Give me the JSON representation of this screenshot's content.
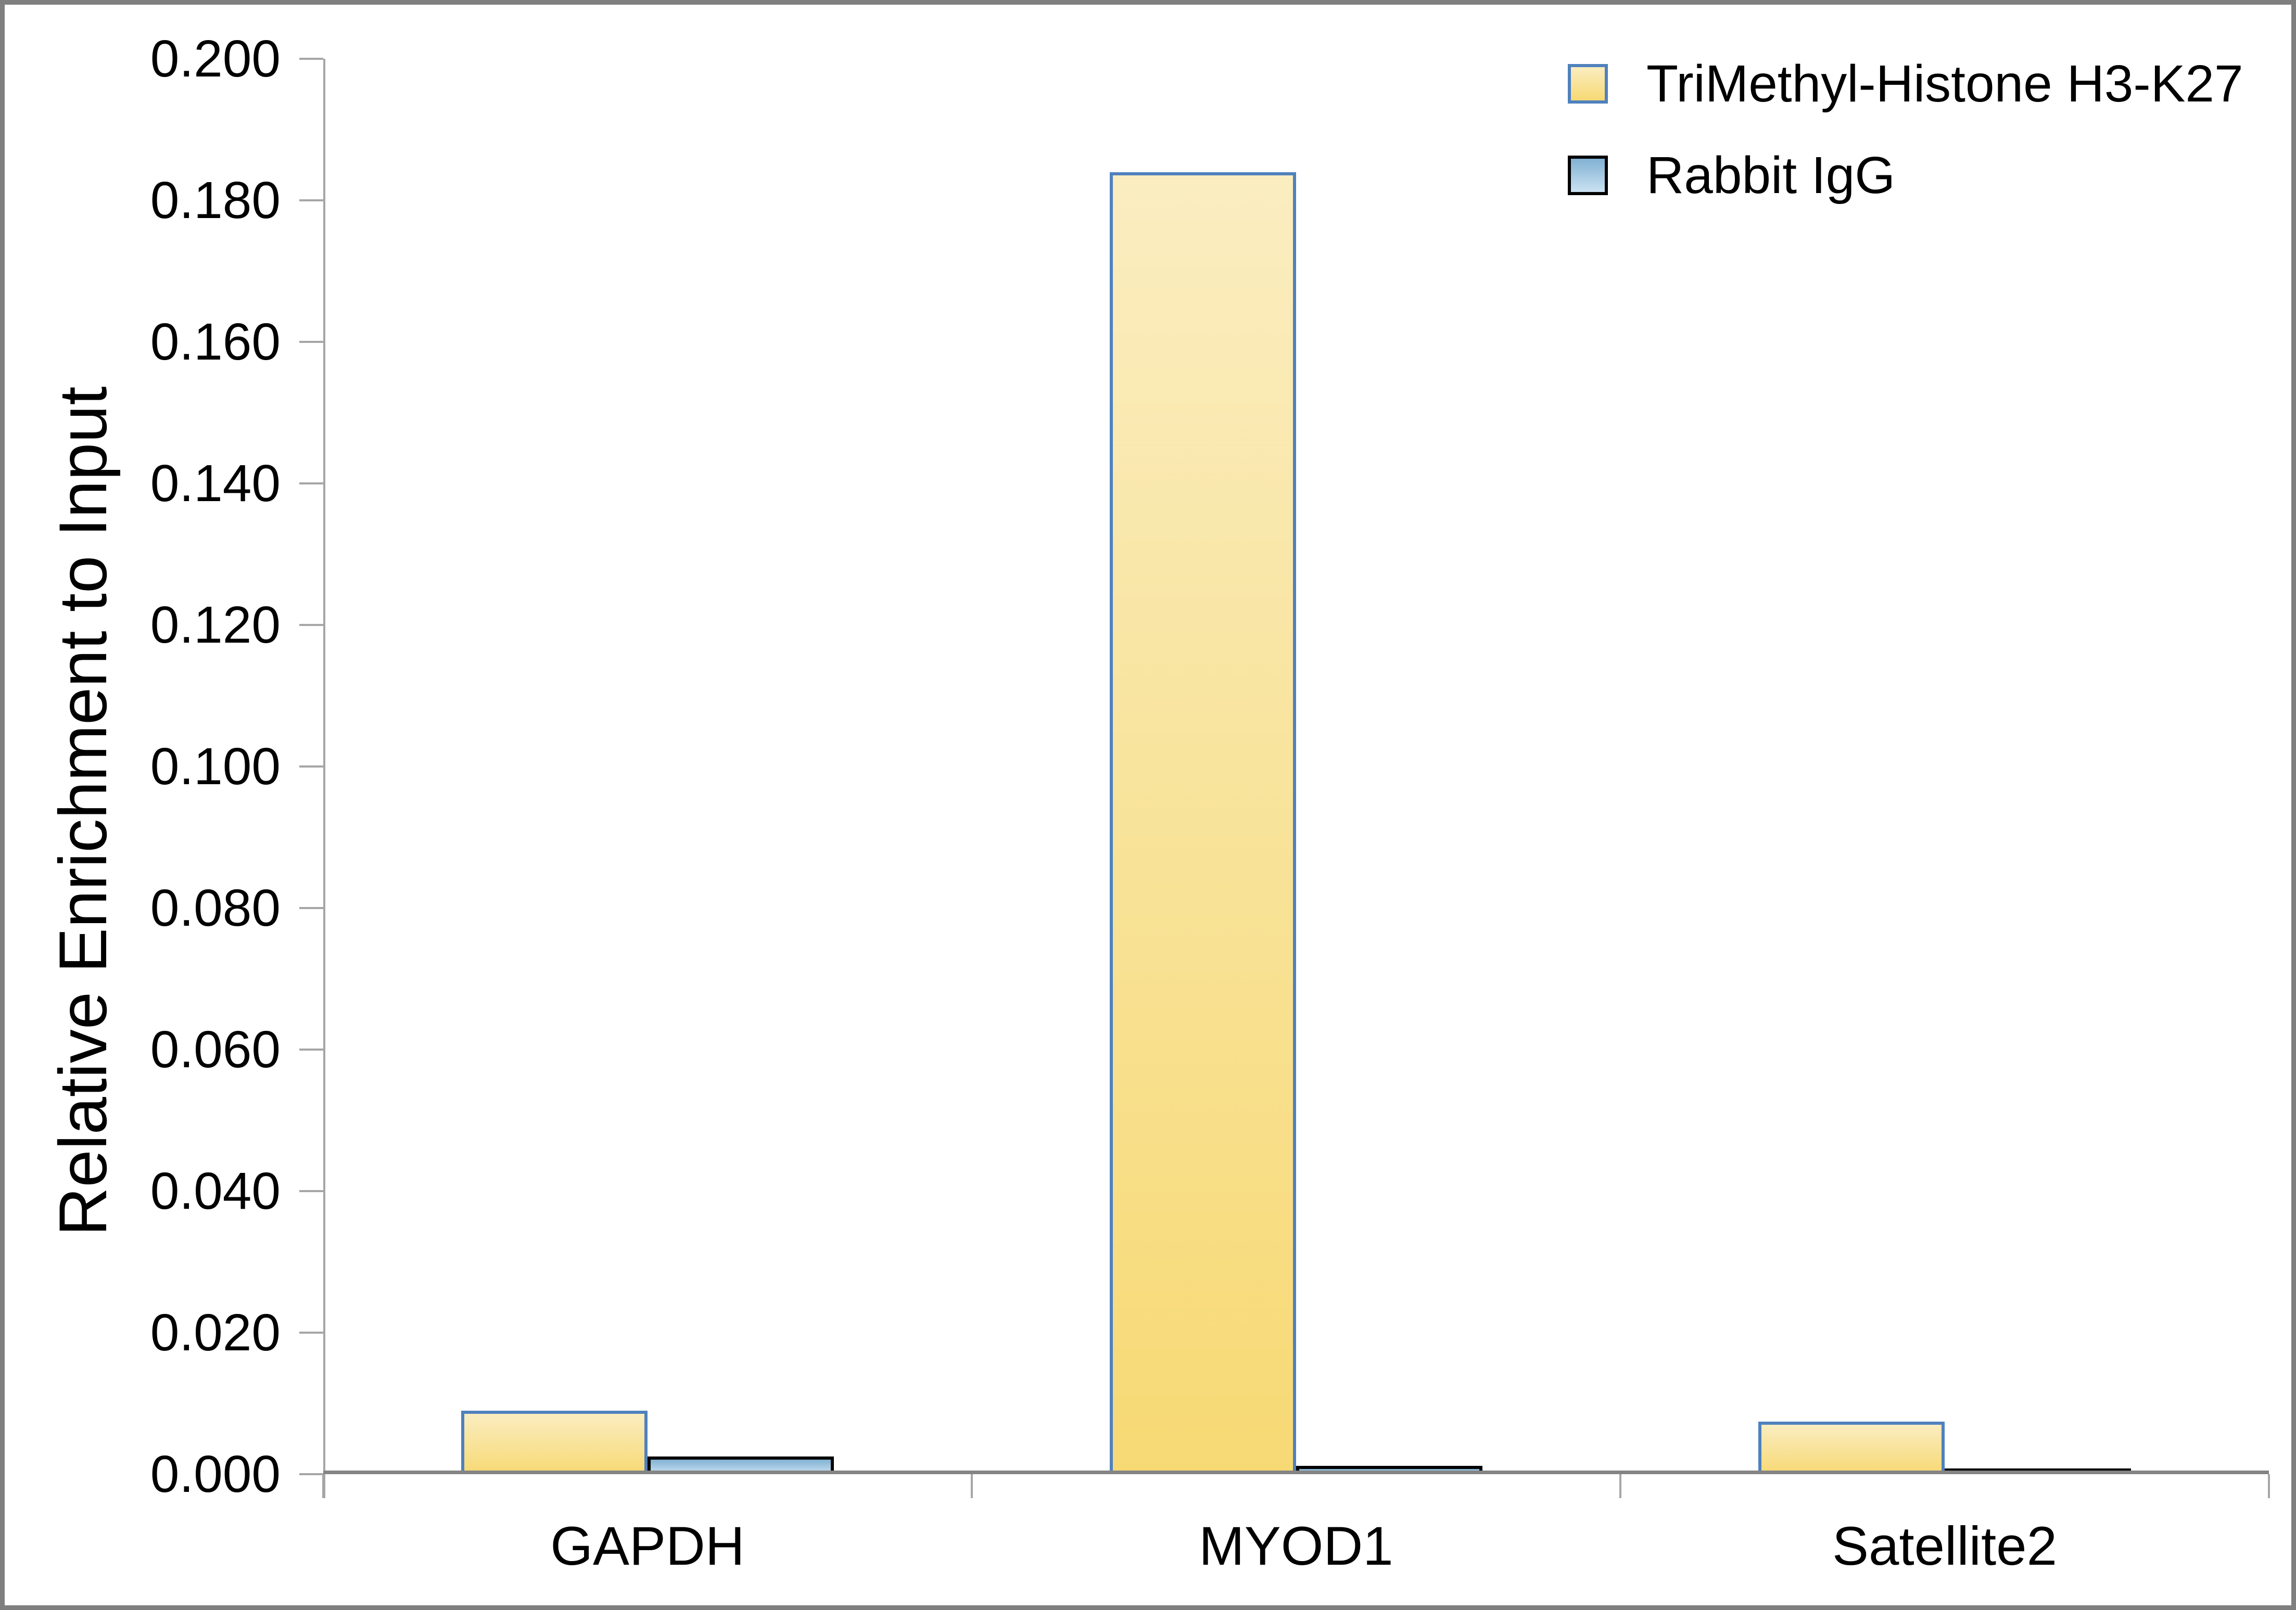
{
  "figure": {
    "background": "#FFFFFF",
    "frame_color": "#7F7F7F"
  },
  "chart_data": {
    "type": "bar",
    "title": "",
    "xlabel": "",
    "ylabel": "Relative Enrichment to Input",
    "categories": [
      "GAPDH",
      "MYOD1",
      "Satellite2"
    ],
    "series": [
      {
        "name": "TriMethyl-Histone H3-K27",
        "values": [
          0.009,
          0.184,
          0.0074
        ],
        "fill_top": "#FAEDC0",
        "fill_bottom": "#F7D974",
        "border_color": "#4F81BD"
      },
      {
        "name": "Rabbit IgG",
        "values": [
          0.0025,
          0.0012,
          0.0008
        ],
        "fill_top": "#81B1D3",
        "fill_bottom": "#CBE2F2",
        "border_color": "#000000"
      }
    ],
    "ylim": [
      0,
      0.2
    ],
    "ytick_step": 0.02,
    "ytick_labels": [
      "0.200",
      "0.180",
      "0.160",
      "0.140",
      "0.120",
      "0.100",
      "0.080",
      "0.060",
      "0.040",
      "0.020",
      "0.000"
    ],
    "grid": false,
    "legend_position": "top-right",
    "axis_colors": {
      "baseline": "#848484",
      "tick_lines": "#A6A6A6",
      "text": "#000000"
    }
  }
}
